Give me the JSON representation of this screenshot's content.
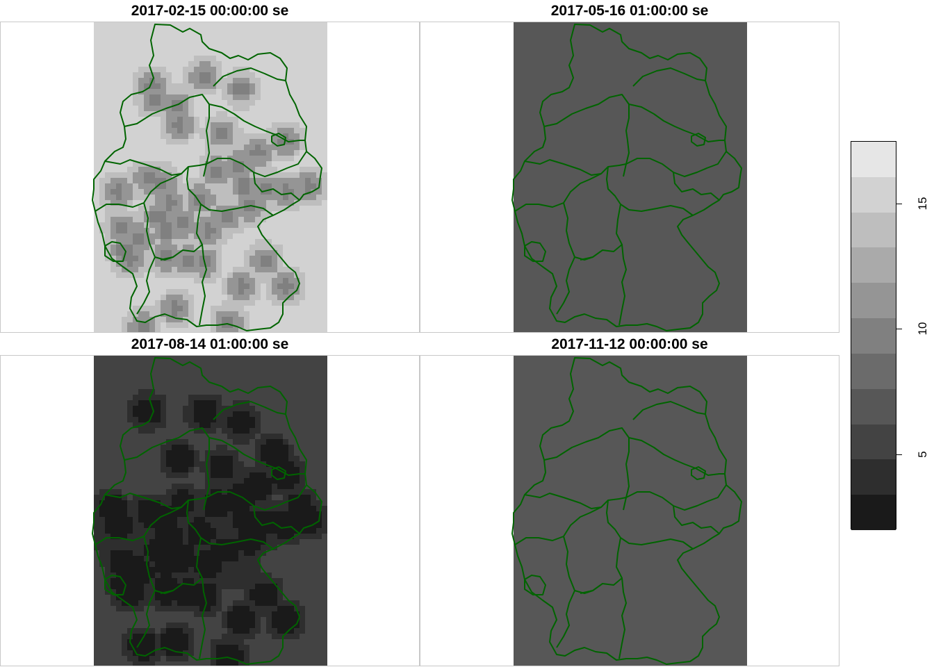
{
  "panels": [
    {
      "title": "2017-02-15 00:00:00 se",
      "base_value": 16.2,
      "hotspot_delta": -1.8,
      "spot_variant": "winter"
    },
    {
      "title": "2017-05-16 01:00:00 se",
      "base_value": 7.2,
      "hotspot_delta": -0.6,
      "spot_variant": "spring"
    },
    {
      "title": "2017-08-14 01:00:00 se",
      "base_value": 5.3,
      "hotspot_delta": -1.0,
      "spot_variant": "summer"
    },
    {
      "title": "2017-11-12 00:00:00 se",
      "base_value": 7.2,
      "hotspot_delta": 0,
      "spot_variant": "none"
    }
  ],
  "legend": {
    "bins": [
      {
        "range": [
          1,
          3
        ],
        "color": "#1a1a1a"
      },
      {
        "range": [
          3,
          4.5
        ],
        "color": "#2e2e2e"
      },
      {
        "range": [
          4.5,
          6
        ],
        "color": "#434343"
      },
      {
        "range": [
          6,
          7.5
        ],
        "color": "#575757"
      },
      {
        "range": [
          7.5,
          9
        ],
        "color": "#6b6b6b"
      },
      {
        "range": [
          9,
          10.5
        ],
        "color": "#808080"
      },
      {
        "range": [
          10.5,
          12
        ],
        "color": "#959595"
      },
      {
        "range": [
          12,
          13.5
        ],
        "color": "#aaaaaa"
      },
      {
        "range": [
          13.5,
          15
        ],
        "color": "#bebebe"
      },
      {
        "range": [
          15,
          16.5
        ],
        "color": "#d2d2d2"
      },
      {
        "range": [
          16.5,
          18
        ],
        "color": "#e6e6e6"
      }
    ],
    "ticks": [
      {
        "value": 5,
        "label": "5"
      },
      {
        "value": 10,
        "label": "10"
      },
      {
        "value": 15,
        "label": "15"
      }
    ],
    "value_range": [
      2,
      17.5
    ]
  },
  "border_color": "#006400"
}
